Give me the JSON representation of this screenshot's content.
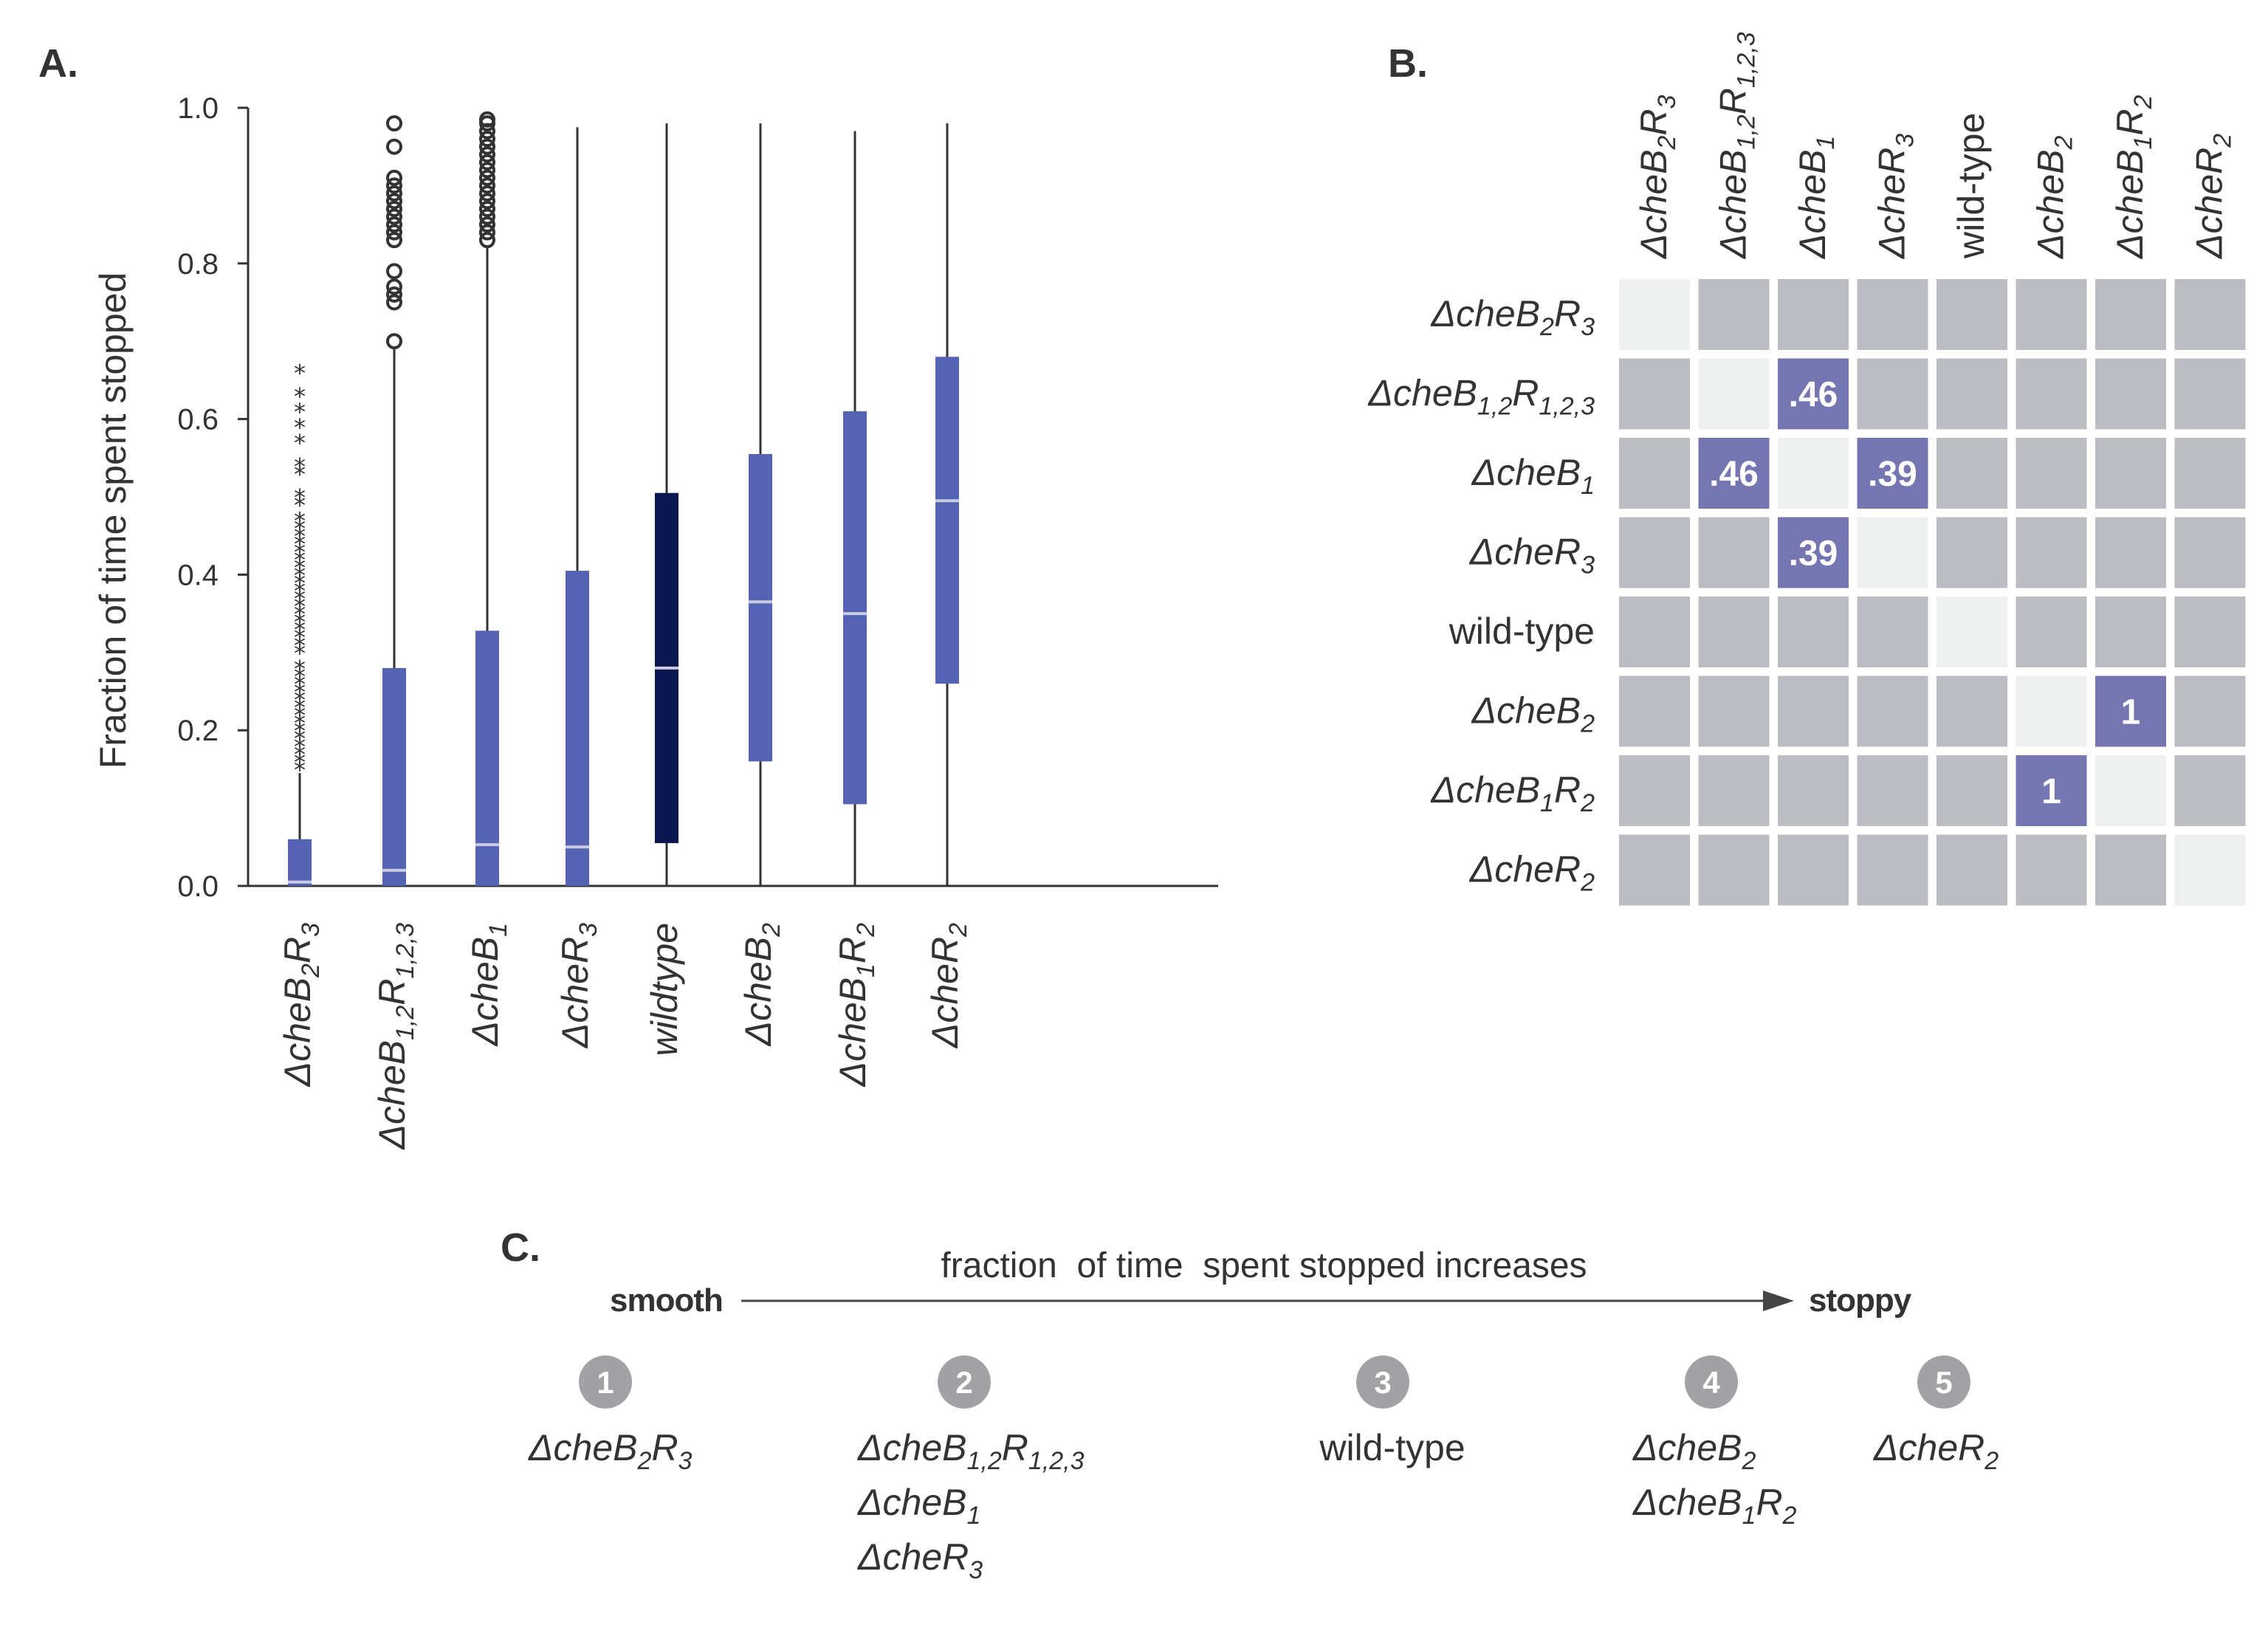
{
  "panels": {
    "a": "A.",
    "b": "B.",
    "c": "C."
  },
  "strains": [
    {
      "id": "B2R3",
      "prefix": "Δ",
      "base": "cheB",
      "parts": [
        [
          "2",
          "sub"
        ],
        [
          "R",
          "base"
        ],
        [
          "3",
          "sub"
        ]
      ]
    },
    {
      "id": "B12R123",
      "prefix": "Δ",
      "base": "cheB",
      "parts": [
        [
          "1,2",
          "sub"
        ],
        [
          "R",
          "base"
        ],
        [
          "1,2,3",
          "sub"
        ]
      ]
    },
    {
      "id": "B1",
      "prefix": "Δ",
      "base": "cheB",
      "parts": [
        [
          "1",
          "sub"
        ]
      ]
    },
    {
      "id": "R3",
      "prefix": "Δ",
      "base": "cheR",
      "parts": [
        [
          "3",
          "sub"
        ]
      ]
    },
    {
      "id": "WT",
      "prefix": "",
      "base": "wild-type",
      "parts": [],
      "plain": true
    },
    {
      "id": "B2",
      "prefix": "Δ",
      "base": "cheB",
      "parts": [
        [
          "2",
          "sub"
        ]
      ]
    },
    {
      "id": "B1R2",
      "prefix": "Δ",
      "base": "cheB",
      "parts": [
        [
          "1",
          "sub"
        ],
        [
          "R",
          "base"
        ],
        [
          "2",
          "sub"
        ]
      ]
    },
    {
      "id": "R2",
      "prefix": "Δ",
      "base": "cheR",
      "parts": [
        [
          "2",
          "sub"
        ]
      ]
    }
  ],
  "chart_data": [
    {
      "type": "box",
      "title": "",
      "ylabel": "Fraction of time spent stopped",
      "ylim": [
        0.0,
        1.0
      ],
      "yticks": [
        "0.0",
        "0.2",
        "0.4",
        "0.6",
        "0.8",
        "1.0"
      ],
      "categories": [
        "ΔcheB2R3",
        "ΔcheB1,2R1,2,3",
        "ΔcheB1",
        "ΔcheR3",
        "wildtype",
        "ΔcheB2",
        "ΔcheB1R2",
        "ΔcheR2"
      ],
      "boxes": [
        {
          "q1": 0.0,
          "median": 0.005,
          "q3": 0.06,
          "whisker_low": 0.0,
          "whisker_high": 0.145,
          "color": "#5563b5"
        },
        {
          "q1": 0.0,
          "median": 0.02,
          "q3": 0.28,
          "whisker_low": 0.0,
          "whisker_high": 0.69,
          "color": "#5563b5"
        },
        {
          "q1": 0.0,
          "median": 0.053,
          "q3": 0.328,
          "whisker_low": 0.0,
          "whisker_high": 0.82,
          "color": "#5563b5"
        },
        {
          "q1": 0.0,
          "median": 0.05,
          "q3": 0.405,
          "whisker_low": 0.0,
          "whisker_high": 0.975,
          "color": "#5563b5"
        },
        {
          "q1": 0.055,
          "median": 0.28,
          "q3": 0.505,
          "whisker_low": 0.0,
          "whisker_high": 0.98,
          "color": "#0a1650"
        },
        {
          "q1": 0.16,
          "median": 0.365,
          "q3": 0.555,
          "whisker_low": 0.0,
          "whisker_high": 0.98,
          "color": "#5563b5"
        },
        {
          "q1": 0.105,
          "median": 0.35,
          "q3": 0.61,
          "whisker_low": 0.0,
          "whisker_high": 0.97,
          "color": "#5563b5"
        },
        {
          "q1": 0.26,
          "median": 0.495,
          "q3": 0.68,
          "whisker_low": 0.0,
          "whisker_high": 0.98,
          "color": "#5563b5"
        }
      ],
      "outliers": [
        {
          "category": 0,
          "marker": "star",
          "values": [
            0.15,
            0.16,
            0.17,
            0.18,
            0.19,
            0.2,
            0.21,
            0.22,
            0.23,
            0.24,
            0.25,
            0.26,
            0.27,
            0.28,
            0.3,
            0.31,
            0.32,
            0.33,
            0.34,
            0.35,
            0.36,
            0.37,
            0.38,
            0.39,
            0.4,
            0.41,
            0.42,
            0.43,
            0.44,
            0.45,
            0.46,
            0.47,
            0.49,
            0.5,
            0.53,
            0.54,
            0.57,
            0.59,
            0.61,
            0.63,
            0.66
          ]
        },
        {
          "category": 1,
          "marker": "circle",
          "values": [
            0.7,
            0.75,
            0.76,
            0.77,
            0.79,
            0.83,
            0.84,
            0.85,
            0.86,
            0.87,
            0.88,
            0.89,
            0.9,
            0.91,
            0.95,
            0.98
          ]
        },
        {
          "category": 2,
          "marker": "circle",
          "values": [
            0.83,
            0.84,
            0.85,
            0.86,
            0.87,
            0.88,
            0.89,
            0.9,
            0.91,
            0.92,
            0.93,
            0.94,
            0.95,
            0.96,
            0.97,
            0.98,
            0.985
          ]
        }
      ]
    },
    {
      "type": "heatmap",
      "title": "",
      "rows": [
        "ΔcheB2R3",
        "ΔcheB1,2R1,2,3",
        "ΔcheB1",
        "ΔcheR3",
        "wild-type",
        "ΔcheB2",
        "ΔcheB1R2",
        "ΔcheR2"
      ],
      "columns": [
        "ΔcheB2R3",
        "ΔcheB1,2R1,2,3",
        "ΔcheB1",
        "ΔcheR3",
        "wild-type",
        "ΔcheB2",
        "ΔcheB1R2",
        "ΔcheR2"
      ],
      "highlighted_cells": [
        {
          "row": 1,
          "col": 2,
          "label": ".46"
        },
        {
          "row": 2,
          "col": 1,
          "label": ".46"
        },
        {
          "row": 2,
          "col": 3,
          "label": ".39"
        },
        {
          "row": 3,
          "col": 2,
          "label": ".39"
        },
        {
          "row": 5,
          "col": 6,
          "label": "1"
        },
        {
          "row": 6,
          "col": 5,
          "label": "1"
        }
      ],
      "colors": {
        "diagonal": "#eef0f0",
        "other": "#bcbdc2",
        "highlight": "#7576b1"
      }
    },
    {
      "type": "ordering",
      "left_label": "smooth",
      "right_label": "stoppy",
      "caption": "fraction  of time  spent stopped increases",
      "ranks": [
        {
          "number": "1",
          "strains": [
            0
          ]
        },
        {
          "number": "2",
          "strains": [
            1,
            2,
            3
          ]
        },
        {
          "number": "3",
          "strains": [
            4
          ]
        },
        {
          "number": "4",
          "strains": [
            5,
            6
          ]
        },
        {
          "number": "5",
          "strains": [
            7
          ]
        }
      ],
      "colors": {
        "circle": "#a2a2a5",
        "arrow": "#444444"
      }
    }
  ]
}
